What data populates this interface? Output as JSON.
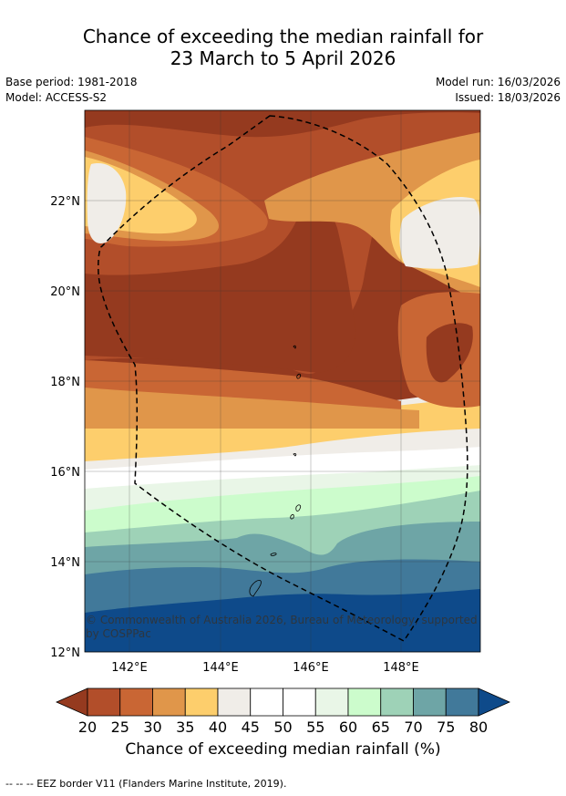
{
  "title": {
    "line1": "Chance of exceeding the median rainfall for",
    "line2": "23 March to 5 April 2026"
  },
  "meta": {
    "base_period": "Base period: 1981-2018",
    "model": "Model: ACCESS-S2",
    "model_run": "Model run: 16/03/2026",
    "issued": "Issued: 18/03/2026"
  },
  "map": {
    "lon_ticks": [
      "142°E",
      "144°E",
      "146°E",
      "148°E"
    ],
    "lat_ticks": [
      "22°N",
      "20°N",
      "18°N",
      "16°N",
      "14°N",
      "12°N"
    ],
    "copyright": "© Commonwealth of Australia 2026, Bureau of Meteorology, supported by COSPPac",
    "colors": {
      "c15": "#953a1f",
      "c20": "#b24e2a",
      "c25": "#c96634",
      "c30": "#e0964a",
      "c35": "#fdce6c",
      "c40": "#f0ede8",
      "c45": "#ffffff",
      "c50": "#ffffff",
      "c55": "#e9f6e7",
      "c60": "#ccfccc",
      "c65": "#9ed2b7",
      "c70": "#6ea5a6",
      "c75": "#41799a",
      "c80": "#0e4a8a"
    }
  },
  "colorbar": {
    "label": "Chance of exceeding median rainfall (%)",
    "ticks": [
      "20",
      "25",
      "30",
      "35",
      "40",
      "45",
      "50",
      "55",
      "60",
      "65",
      "70",
      "75",
      "80"
    ],
    "under_color": "#953a1f",
    "over_color": "#0e4a8a",
    "colors": [
      "#b24e2a",
      "#c96634",
      "#e0964a",
      "#fdce6c",
      "#f0ede8",
      "#ffffff",
      "#ffffff",
      "#e9f6e7",
      "#ccfccc",
      "#9ed2b7",
      "#6ea5a6",
      "#41799a"
    ]
  },
  "footnote": "--  --  -- EEZ border V11 (Flanders Marine Institute, 2019)."
}
